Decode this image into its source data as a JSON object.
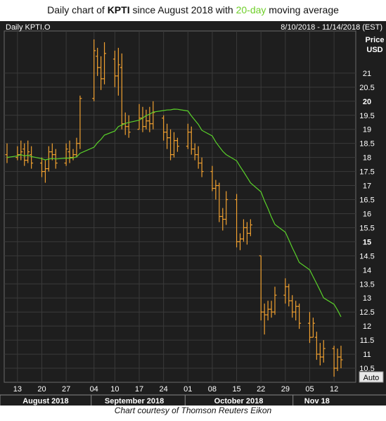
{
  "title": {
    "prefix": "Daily chart of ",
    "ticker": "KPTI",
    "middle": " since August 2018 with ",
    "ma_label": "20-day",
    "suffix": " moving average"
  },
  "credit": "Chart courtesy of Thomson Reuters Eikon",
  "colors": {
    "background": "#1e1e1e",
    "grid": "#3a3a3a",
    "price_bars": "#f0a030",
    "moving_average": "#5ad12a",
    "axis_text": "#ffffff"
  },
  "chart_data": {
    "type": "ohlc",
    "symbol_label": "Daily KPTI.O",
    "date_range_label": "8/10/2018 - 11/14/2018 (EST)",
    "ylabel_lines": [
      "Price",
      "USD"
    ],
    "ylim": [
      10,
      22.5
    ],
    "yticks": [
      10.5,
      11,
      11.5,
      12,
      12.5,
      13,
      13.5,
      14,
      14.5,
      15,
      15.5,
      16,
      16.5,
      17,
      17.5,
      18,
      18.5,
      19,
      19.5,
      20,
      20.5,
      21
    ],
    "yticks_bold": [
      15,
      20
    ],
    "xticks": [
      {
        "label": "13",
        "date": "2018-08-13"
      },
      {
        "label": "20",
        "date": "2018-08-20"
      },
      {
        "label": "27",
        "date": "2018-08-27"
      },
      {
        "label": "04",
        "date": "2018-09-04"
      },
      {
        "label": "10",
        "date": "2018-09-10"
      },
      {
        "label": "17",
        "date": "2018-09-17"
      },
      {
        "label": "24",
        "date": "2018-09-24"
      },
      {
        "label": "01",
        "date": "2018-10-01"
      },
      {
        "label": "08",
        "date": "2018-10-08"
      },
      {
        "label": "15",
        "date": "2018-10-15"
      },
      {
        "label": "22",
        "date": "2018-10-22"
      },
      {
        "label": "29",
        "date": "2018-10-29"
      },
      {
        "label": "05",
        "date": "2018-11-05"
      },
      {
        "label": "12",
        "date": "2018-11-12"
      }
    ],
    "months": [
      {
        "label": "August 2018",
        "start": "2018-08-10",
        "end": "2018-08-31"
      },
      {
        "label": "September 2018",
        "start": "2018-09-04",
        "end": "2018-09-28"
      },
      {
        "label": "October 2018",
        "start": "2018-10-01",
        "end": "2018-10-31"
      },
      {
        "label": "Nov 18",
        "start": "2018-11-01",
        "end": "2018-11-14"
      }
    ],
    "auto_label": "Auto",
    "bars": [
      {
        "date": "2018-08-10",
        "high": 18.5,
        "low": 17.8,
        "open": 18.1,
        "close": 18.0
      },
      {
        "date": "2018-08-13",
        "high": 18.4,
        "low": 17.9,
        "open": 18.0,
        "close": 18.1
      },
      {
        "date": "2018-08-14",
        "high": 18.6,
        "low": 17.9,
        "open": 18.1,
        "close": 18.2
      },
      {
        "date": "2018-08-15",
        "high": 18.5,
        "low": 17.7,
        "open": 18.3,
        "close": 17.9
      },
      {
        "date": "2018-08-16",
        "high": 18.6,
        "low": 17.8,
        "open": 17.9,
        "close": 18.2
      },
      {
        "date": "2018-08-17",
        "high": 18.4,
        "low": 17.6,
        "open": 18.1,
        "close": 17.8
      },
      {
        "date": "2018-08-20",
        "high": 18.0,
        "low": 17.3,
        "open": 17.8,
        "close": 17.5
      },
      {
        "date": "2018-08-21",
        "high": 17.9,
        "low": 17.1,
        "open": 17.5,
        "close": 17.6
      },
      {
        "date": "2018-08-22",
        "high": 18.4,
        "low": 17.5,
        "open": 17.6,
        "close": 18.2
      },
      {
        "date": "2018-08-23",
        "high": 18.5,
        "low": 17.9,
        "open": 18.2,
        "close": 18.1
      },
      {
        "date": "2018-08-24",
        "high": 18.3,
        "low": 17.6,
        "open": 18.1,
        "close": 17.8
      },
      {
        "date": "2018-08-27",
        "high": 18.5,
        "low": 17.7,
        "open": 17.8,
        "close": 18.3
      },
      {
        "date": "2018-08-28",
        "high": 18.6,
        "low": 17.8,
        "open": 18.2,
        "close": 18.0
      },
      {
        "date": "2018-08-29",
        "high": 18.3,
        "low": 17.9,
        "open": 18.0,
        "close": 18.1
      },
      {
        "date": "2018-08-30",
        "high": 18.7,
        "low": 18.0,
        "open": 18.1,
        "close": 18.5
      },
      {
        "date": "2018-08-31",
        "high": 20.2,
        "low": 18.3,
        "open": 18.5,
        "close": 20.1
      },
      {
        "date": "2018-09-04",
        "high": 22.2,
        "low": 20.0,
        "open": 20.1,
        "close": 21.8
      },
      {
        "date": "2018-09-05",
        "high": 21.9,
        "low": 20.9,
        "open": 21.6,
        "close": 21.2
      },
      {
        "date": "2018-09-06",
        "high": 21.6,
        "low": 20.4,
        "open": 21.2,
        "close": 20.8
      },
      {
        "date": "2018-09-07",
        "high": 22.1,
        "low": 20.6,
        "open": 20.8,
        "close": 21.7
      },
      {
        "date": "2018-09-10",
        "high": 21.8,
        "low": 20.5,
        "open": 21.5,
        "close": 20.9
      },
      {
        "date": "2018-09-11",
        "high": 21.9,
        "low": 20.2,
        "open": 20.9,
        "close": 21.3
      },
      {
        "date": "2018-09-12",
        "high": 21.7,
        "low": 19.0,
        "open": 21.2,
        "close": 19.2
      },
      {
        "date": "2018-09-13",
        "high": 19.6,
        "low": 18.8,
        "open": 19.2,
        "close": 19.1
      },
      {
        "date": "2018-09-14",
        "high": 19.5,
        "low": 18.7,
        "open": 19.1,
        "close": 18.9
      },
      {
        "date": "2018-09-17",
        "high": 19.9,
        "low": 19.0,
        "open": 19.0,
        "close": 19.4
      },
      {
        "date": "2018-09-18",
        "high": 19.8,
        "low": 18.9,
        "open": 19.4,
        "close": 19.1
      },
      {
        "date": "2018-09-19",
        "high": 19.7,
        "low": 19.0,
        "open": 19.1,
        "close": 19.3
      },
      {
        "date": "2018-09-20",
        "high": 19.8,
        "low": 18.9,
        "open": 19.3,
        "close": 19.2
      },
      {
        "date": "2018-09-21",
        "high": 20.0,
        "low": 19.0,
        "open": 19.2,
        "close": 19.6
      },
      {
        "date": "2018-09-24",
        "high": 19.5,
        "low": 18.6,
        "open": 19.4,
        "close": 18.9
      },
      {
        "date": "2018-09-25",
        "high": 19.2,
        "low": 18.3,
        "open": 18.9,
        "close": 18.7
      },
      {
        "date": "2018-09-26",
        "high": 19.0,
        "low": 17.9,
        "open": 18.7,
        "close": 18.1
      },
      {
        "date": "2018-09-27",
        "high": 18.9,
        "low": 18.0,
        "open": 18.1,
        "close": 18.6
      },
      {
        "date": "2018-09-28",
        "high": 18.7,
        "low": 18.2,
        "open": 18.6,
        "close": 18.4
      },
      {
        "date": "2018-10-01",
        "high": 19.2,
        "low": 18.3,
        "open": 18.4,
        "close": 18.9
      },
      {
        "date": "2018-10-02",
        "high": 19.1,
        "low": 18.1,
        "open": 18.9,
        "close": 18.3
      },
      {
        "date": "2018-10-03",
        "high": 18.5,
        "low": 17.9,
        "open": 18.3,
        "close": 18.1
      },
      {
        "date": "2018-10-04",
        "high": 18.4,
        "low": 17.6,
        "open": 18.1,
        "close": 17.8
      },
      {
        "date": "2018-10-05",
        "high": 18.0,
        "low": 17.3,
        "open": 17.8,
        "close": 17.5
      },
      {
        "date": "2018-10-08",
        "high": 17.7,
        "low": 16.8,
        "open": 17.5,
        "close": 16.9
      },
      {
        "date": "2018-10-09",
        "high": 17.2,
        "low": 16.5,
        "open": 16.9,
        "close": 17.0
      },
      {
        "date": "2018-10-10",
        "high": 17.1,
        "low": 15.7,
        "open": 17.0,
        "close": 15.9
      },
      {
        "date": "2018-10-11",
        "high": 16.2,
        "low": 15.4,
        "open": 15.9,
        "close": 15.8
      },
      {
        "date": "2018-10-12",
        "high": 16.8,
        "low": 15.6,
        "open": 15.8,
        "close": 16.5
      },
      {
        "date": "2018-10-15",
        "high": 16.7,
        "low": 14.8,
        "open": 16.5,
        "close": 15.0
      },
      {
        "date": "2018-10-16",
        "high": 15.3,
        "low": 14.7,
        "open": 15.0,
        "close": 15.1
      },
      {
        "date": "2018-10-17",
        "high": 15.8,
        "low": 15.0,
        "open": 15.1,
        "close": 15.5
      },
      {
        "date": "2018-10-18",
        "high": 15.7,
        "low": 14.9,
        "open": 15.5,
        "close": 15.3
      },
      {
        "date": "2018-10-19",
        "high": 15.8,
        "low": 15.2,
        "open": 15.3,
        "close": 15.6
      },
      {
        "date": "2018-10-22",
        "high": 14.5,
        "low": 12.2,
        "open": 14.5,
        "close": 12.5
      },
      {
        "date": "2018-10-23",
        "high": 12.8,
        "low": 11.7,
        "open": 12.5,
        "close": 12.4
      },
      {
        "date": "2018-10-24",
        "high": 12.9,
        "low": 12.2,
        "open": 12.4,
        "close": 12.6
      },
      {
        "date": "2018-10-25",
        "high": 12.9,
        "low": 12.3,
        "open": 12.6,
        "close": 12.5
      },
      {
        "date": "2018-10-26",
        "high": 13.4,
        "low": 12.4,
        "open": 12.5,
        "close": 13.1
      },
      {
        "date": "2018-10-29",
        "high": 13.7,
        "low": 12.8,
        "open": 13.1,
        "close": 13.4
      },
      {
        "date": "2018-10-30",
        "high": 13.5,
        "low": 12.7,
        "open": 13.4,
        "close": 12.9
      },
      {
        "date": "2018-10-31",
        "high": 13.1,
        "low": 12.3,
        "open": 12.9,
        "close": 12.5
      },
      {
        "date": "2018-11-01",
        "high": 12.9,
        "low": 12.2,
        "open": 12.5,
        "close": 12.7
      },
      {
        "date": "2018-11-02",
        "high": 12.8,
        "low": 11.9,
        "open": 12.7,
        "close": 12.1
      },
      {
        "date": "2018-11-05",
        "high": 12.5,
        "low": 11.4,
        "open": 12.1,
        "close": 11.6
      },
      {
        "date": "2018-11-06",
        "high": 12.3,
        "low": 11.6,
        "open": 11.6,
        "close": 12.1
      },
      {
        "date": "2018-11-07",
        "high": 11.8,
        "low": 10.8,
        "open": 11.6,
        "close": 11.0
      },
      {
        "date": "2018-11-08",
        "high": 11.4,
        "low": 10.6,
        "open": 11.0,
        "close": 10.9
      },
      {
        "date": "2018-11-09",
        "high": 11.5,
        "low": 10.7,
        "open": 10.9,
        "close": 11.2
      },
      {
        "date": "2018-11-12",
        "high": 11.3,
        "low": 10.2,
        "open": 11.2,
        "close": 10.5
      },
      {
        "date": "2018-11-13",
        "high": 11.2,
        "low": 10.4,
        "open": 10.5,
        "close": 10.9
      },
      {
        "date": "2018-11-14",
        "high": 11.3,
        "low": 10.5,
        "open": 10.9,
        "close": 10.8
      }
    ]
  }
}
